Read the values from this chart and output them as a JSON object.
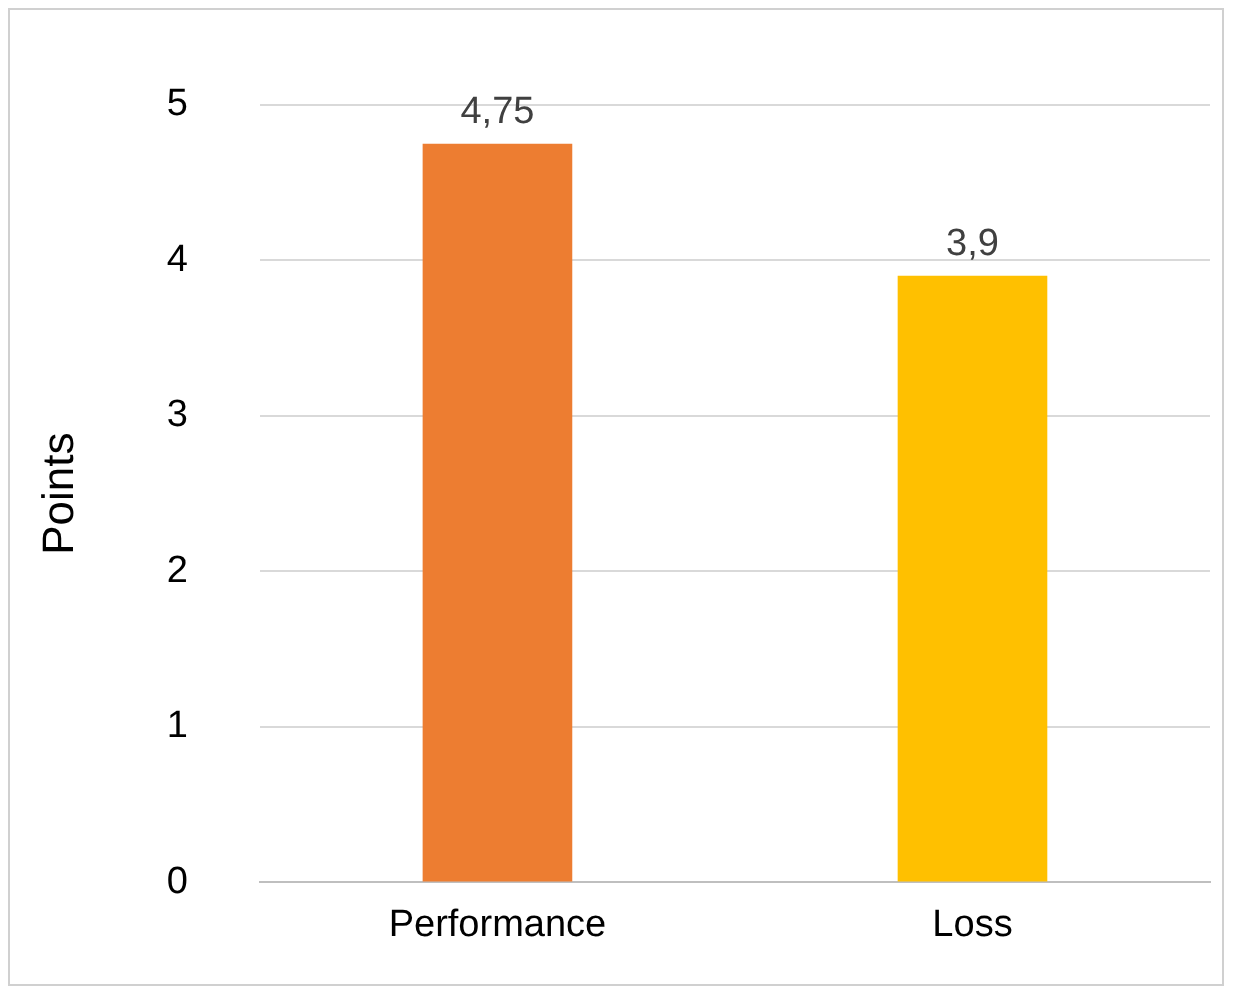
{
  "chart_data": {
    "type": "bar",
    "ylabel": "Points",
    "categories": [
      "Performance",
      "Loss"
    ],
    "values": [
      4.75,
      3.9
    ],
    "colors": [
      "#ed7d31",
      "#ffc000"
    ],
    "value_labels": [
      "4,75",
      "3,9"
    ],
    "ylim": [
      0,
      5
    ],
    "yticks": [
      0,
      1,
      2,
      3,
      4,
      5
    ],
    "grid": "y",
    "legend": false
  }
}
